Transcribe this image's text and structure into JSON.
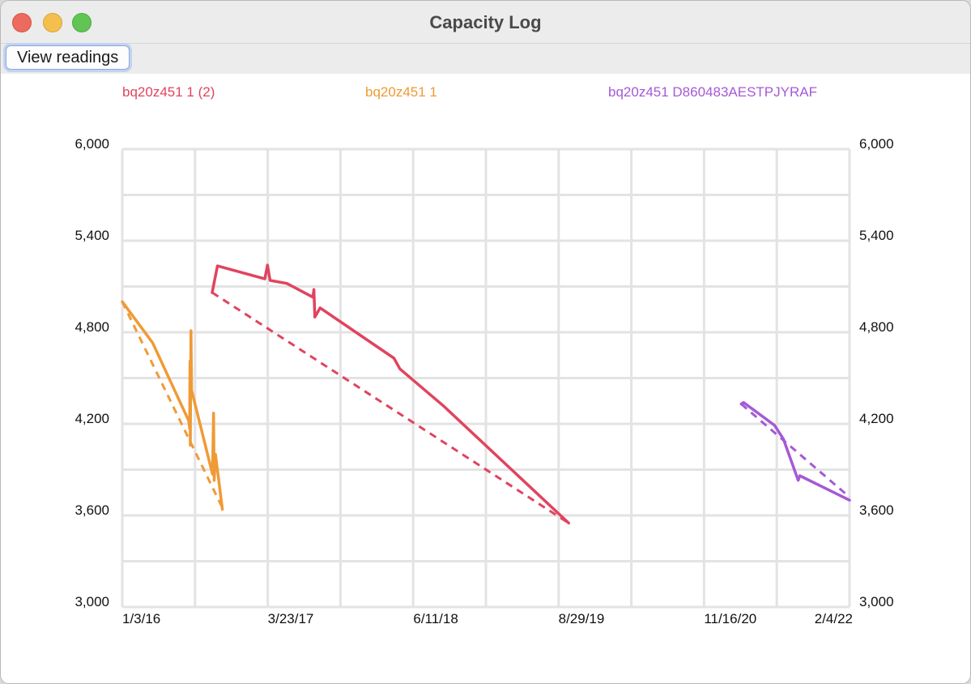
{
  "window": {
    "title": "Capacity Log"
  },
  "toolbar": {
    "view_readings_label": "View readings"
  },
  "chart_data": {
    "type": "line",
    "title": "",
    "xlabel": "",
    "ylabel": "",
    "x_axis": {
      "min": "1/3/16",
      "max": "2/4/22",
      "ticks": [
        "1/3/16",
        "3/23/17",
        "6/11/18",
        "8/29/19",
        "11/16/20",
        "2/4/22"
      ]
    },
    "ylim": [
      3000,
      6000
    ],
    "yticks": [
      3000,
      3600,
      4200,
      4800,
      5400,
      6000
    ],
    "ytick_labels": [
      "3,000",
      "3,600",
      "4,200",
      "4,800",
      "5,400",
      "6,000"
    ],
    "y_axis_sides": "left-and-right",
    "grid": true,
    "legend": "top",
    "series": [
      {
        "name": "bq20z451 1 (2)",
        "color": "#e0445e",
        "values": [
          [
            "10/4/16",
            5060
          ],
          [
            "10/20/16",
            5235
          ],
          [
            "3/14/17",
            5150
          ],
          [
            "3/22/17",
            5240
          ],
          [
            "3/30/17",
            5140
          ],
          [
            "5/20/17",
            5120
          ],
          [
            "8/8/17",
            5030
          ],
          [
            "8/11/17",
            5080
          ],
          [
            "8/14/17",
            4900
          ],
          [
            "8/30/17",
            4960
          ],
          [
            "4/13/18",
            4630
          ],
          [
            "5/1/18",
            4560
          ],
          [
            "9/10/18",
            4320
          ],
          [
            "9/29/19",
            3550
          ]
        ],
        "trend": [
          [
            "10/4/16",
            5060
          ],
          [
            "9/29/19",
            3550
          ]
        ]
      },
      {
        "name": "bq20z451 1",
        "color": "#f09a35",
        "values": [
          [
            "1/3/16",
            5000
          ],
          [
            "4/5/16",
            4730
          ],
          [
            "7/24/16",
            4220
          ],
          [
            "7/27/16",
            4170
          ],
          [
            "7/28/16",
            4610
          ],
          [
            "7/29/16",
            4060
          ],
          [
            "7/31/16",
            4810
          ],
          [
            "8/1/16",
            4620
          ],
          [
            "8/2/16",
            4420
          ],
          [
            "10/5/16",
            3870
          ],
          [
            "10/8/16",
            4270
          ],
          [
            "10/10/16",
            3830
          ],
          [
            "10/14/16",
            4000
          ],
          [
            "11/4/16",
            3640
          ]
        ],
        "trend": [
          [
            "1/3/16",
            5000
          ],
          [
            "11/4/16",
            3650
          ]
        ]
      },
      {
        "name": "bq20z451 D860483AESTPJYRAF",
        "color": "#a559d6",
        "values": [
          [
            "3/10/21",
            4330
          ],
          [
            "3/17/21",
            4340
          ],
          [
            "6/20/21",
            4190
          ],
          [
            "7/17/21",
            4100
          ],
          [
            "8/31/21",
            3830
          ],
          [
            "9/5/21",
            3860
          ],
          [
            "2/4/22",
            3700
          ]
        ],
        "trend": [
          [
            "3/10/21",
            4330
          ],
          [
            "2/4/22",
            3720
          ]
        ]
      }
    ]
  }
}
